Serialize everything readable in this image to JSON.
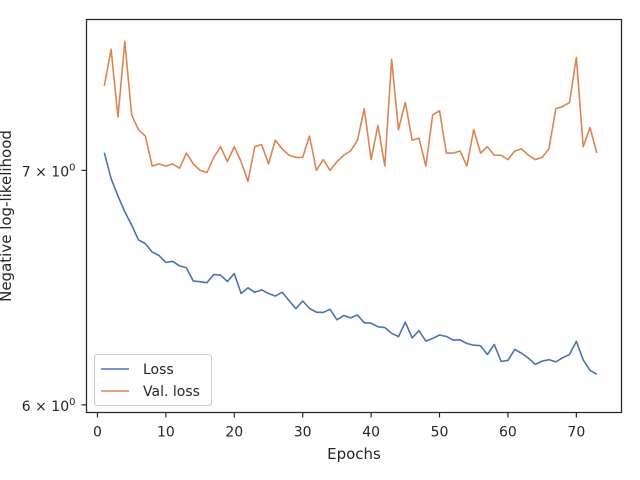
{
  "chart_data": {
    "type": "line",
    "xlabel": "Epochs",
    "ylabel": "Negative log-likelihood",
    "yscale": "log",
    "xlim": [
      -1.6,
      76.6
    ],
    "ylim": [
      5.97,
      7.73
    ],
    "grid": false,
    "legend_position": "lower-left",
    "x_ticks": [
      {
        "value": 0,
        "label": "0"
      },
      {
        "value": 10,
        "label": "10"
      },
      {
        "value": 20,
        "label": "20"
      },
      {
        "value": 30,
        "label": "30"
      },
      {
        "value": 40,
        "label": "40"
      },
      {
        "value": 50,
        "label": "50"
      },
      {
        "value": 60,
        "label": "60"
      },
      {
        "value": 70,
        "label": "70"
      }
    ],
    "y_ticks": [
      {
        "value": 6,
        "label_base": "6 × 10",
        "label_exp": "0"
      },
      {
        "value": 7,
        "label_base": "7 × 10",
        "label_exp": "0"
      }
    ],
    "x": [
      1,
      2,
      3,
      4,
      5,
      6,
      7,
      8,
      9,
      10,
      11,
      12,
      13,
      14,
      15,
      16,
      17,
      18,
      19,
      20,
      21,
      22,
      23,
      24,
      25,
      26,
      27,
      28,
      29,
      30,
      31,
      32,
      33,
      34,
      35,
      36,
      37,
      38,
      39,
      40,
      41,
      42,
      43,
      44,
      45,
      46,
      47,
      48,
      49,
      50,
      51,
      52,
      53,
      54,
      55,
      56,
      57,
      58,
      59,
      60,
      61,
      62,
      63,
      64,
      65,
      66,
      67,
      68,
      69,
      70,
      71,
      72,
      73
    ],
    "series": [
      {
        "name": "Loss",
        "color": "#4c72b0",
        "values": [
          7.082,
          6.962,
          6.883,
          6.812,
          6.753,
          6.687,
          6.671,
          6.634,
          6.619,
          6.589,
          6.594,
          6.574,
          6.566,
          6.509,
          6.506,
          6.502,
          6.537,
          6.534,
          6.507,
          6.541,
          6.456,
          6.48,
          6.461,
          6.471,
          6.456,
          6.445,
          6.461,
          6.426,
          6.392,
          6.424,
          6.393,
          6.377,
          6.376,
          6.389,
          6.345,
          6.363,
          6.353,
          6.365,
          6.333,
          6.331,
          6.316,
          6.313,
          6.289,
          6.275,
          6.335,
          6.27,
          6.3,
          6.257,
          6.268,
          6.282,
          6.276,
          6.261,
          6.262,
          6.247,
          6.24,
          6.238,
          6.202,
          6.243,
          6.174,
          6.178,
          6.223,
          6.207,
          6.187,
          6.162,
          6.175,
          6.181,
          6.172,
          6.189,
          6.202,
          6.256,
          6.18,
          6.138,
          6.122
        ]
      },
      {
        "name": "Val. loss",
        "color": "#dd8452",
        "values": [
          7.4,
          7.58,
          7.25,
          7.62,
          7.26,
          7.19,
          7.16,
          7.02,
          7.03,
          7.02,
          7.03,
          7.01,
          7.08,
          7.03,
          7.0,
          6.99,
          7.06,
          7.11,
          7.04,
          7.11,
          7.04,
          6.95,
          7.11,
          7.12,
          7.03,
          7.14,
          7.1,
          7.07,
          7.06,
          7.06,
          7.16,
          7.0,
          7.05,
          7.0,
          7.04,
          7.07,
          7.09,
          7.14,
          7.29,
          7.05,
          7.21,
          7.02,
          7.53,
          7.19,
          7.32,
          7.14,
          7.15,
          7.02,
          7.26,
          7.28,
          7.08,
          7.08,
          7.09,
          7.02,
          7.19,
          7.08,
          7.11,
          7.07,
          7.07,
          7.05,
          7.09,
          7.1,
          7.07,
          7.05,
          7.06,
          7.1,
          7.29,
          7.3,
          7.32,
          7.54,
          7.11,
          7.2,
          7.08
        ]
      }
    ]
  }
}
